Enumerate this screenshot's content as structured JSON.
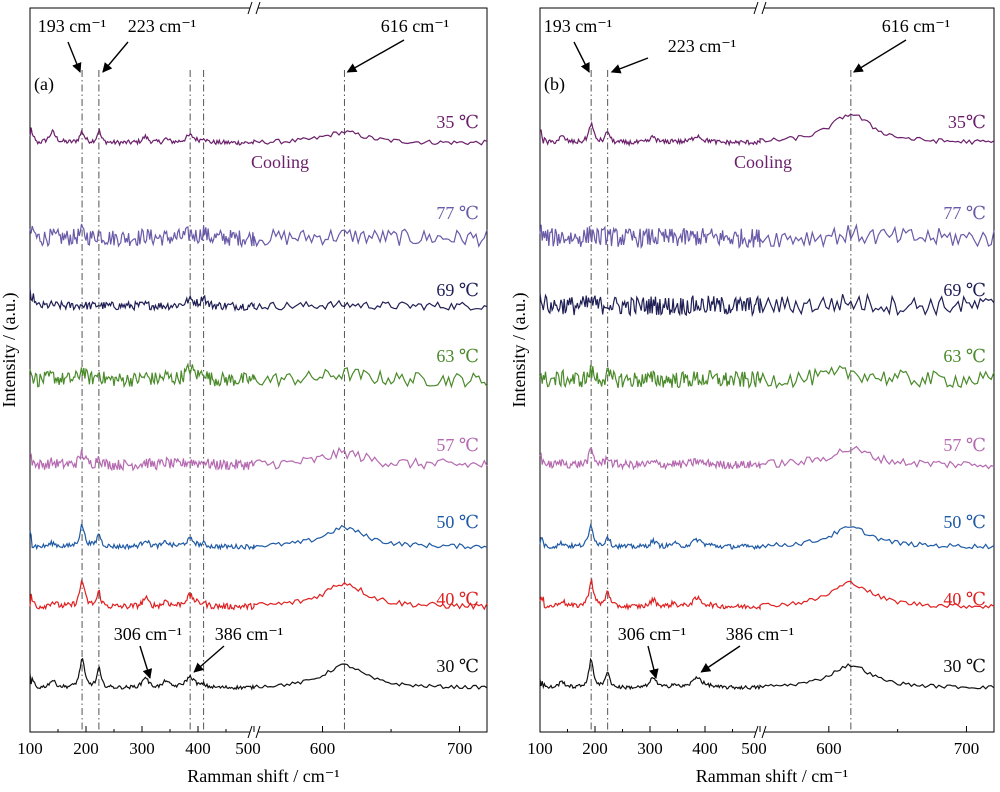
{
  "chart_data": [
    {
      "type": "line",
      "panel_label": "(a)",
      "xlabel": "Ramman shift / cm⁻¹",
      "ylabel": "Intensity / (a.u.)",
      "x_ticks": [
        "100",
        "200",
        "300",
        "400",
        "500",
        "600",
        "700"
      ],
      "axis_break": "between 500 and 550 cm⁻¹",
      "annotation_text": "Cooling",
      "annotation_color": "#6b1f6b",
      "peak_labels": [
        "193 cm⁻¹",
        "223 cm⁻¹",
        "616 cm⁻¹",
        "306 cm⁻¹",
        "386 cm⁻¹"
      ],
      "series": [
        {
          "name": "35 ℃",
          "color": "#6b1f6b",
          "noise": 0.2,
          "peak_amps": [
            0.9,
            0.9,
            1.0,
            0.5,
            0.6,
            0.3,
            0.4,
            0.9
          ]
        },
        {
          "name": "77 ℃",
          "color": "#6a5aa8",
          "noise": 0.7,
          "peak_amps": [
            0.1,
            0.5,
            0.4,
            0.2,
            0.3,
            0.0,
            0.6,
            0.2
          ]
        },
        {
          "name": "69 ℃",
          "color": "#1f1f55",
          "noise": 0.35,
          "peak_amps": [
            0.1,
            0.1,
            0.1,
            0.1,
            0.5,
            0.0,
            0.8,
            0.1
          ]
        },
        {
          "name": "63 ℃",
          "color": "#4a8a2a",
          "noise": 0.6,
          "peak_amps": [
            0.3,
            0.9,
            0.6,
            0.3,
            0.9,
            0.3,
            0.7,
            0.5
          ]
        },
        {
          "name": "57 ℃",
          "color": "#b569b0",
          "noise": 0.45,
          "peak_amps": [
            0.2,
            1.0,
            0.7,
            0.2,
            0.3,
            0.2,
            0.3,
            1.0
          ]
        },
        {
          "name": "50 ℃",
          "color": "#1f5aa5",
          "noise": 0.2,
          "peak_amps": [
            0.3,
            1.8,
            1.1,
            0.6,
            0.6,
            0.4,
            0.2,
            1.6
          ]
        },
        {
          "name": "40 ℃",
          "color": "#e02020",
          "noise": 0.25,
          "peak_amps": [
            0.4,
            2.2,
            1.2,
            0.7,
            0.9,
            0.5,
            0.3,
            2.0
          ]
        },
        {
          "name": "30 ℃",
          "color": "#111111",
          "noise": 0.15,
          "peak_amps": [
            0.6,
            2.4,
            1.6,
            0.9,
            0.9,
            0.6,
            0.2,
            1.9
          ]
        }
      ]
    },
    {
      "type": "line",
      "panel_label": "(b)",
      "xlabel": "Ramman shift / cm⁻¹",
      "ylabel": "Intensity / (a.u.)",
      "x_ticks": [
        "100",
        "200",
        "300",
        "400",
        "500",
        "600",
        "700"
      ],
      "axis_break": "between 500 and 550 cm⁻¹",
      "annotation_text": "Cooling",
      "annotation_color": "#6b1f6b",
      "peak_labels": [
        "193 cm⁻¹",
        "223 cm⁻¹",
        "616 cm⁻¹",
        "306 cm⁻¹",
        "386 cm⁻¹"
      ],
      "series": [
        {
          "name": "35℃",
          "color": "#6b1f6b",
          "noise": 0.2,
          "peak_amps": [
            0.5,
            1.6,
            1.0,
            0.5,
            0.6,
            0.2,
            0.1,
            2.4
          ]
        },
        {
          "name": "77 ℃",
          "color": "#6a5aa8",
          "noise": 0.8,
          "peak_amps": [
            0.1,
            0.4,
            0.3,
            0.1,
            0.1,
            0.0,
            0.1,
            0.3
          ]
        },
        {
          "name": "69 ℃",
          "color": "#1f1f55",
          "noise": 0.8,
          "peak_amps": [
            0.1,
            0.4,
            0.3,
            0.1,
            0.1,
            0.0,
            0.1,
            0.3
          ]
        },
        {
          "name": "63 ℃",
          "color": "#4a8a2a",
          "noise": 0.7,
          "peak_amps": [
            0.1,
            0.7,
            0.4,
            0.1,
            0.1,
            0.0,
            0.1,
            0.6
          ]
        },
        {
          "name": "57 ℃",
          "color": "#b569b0",
          "noise": 0.35,
          "peak_amps": [
            0.2,
            1.2,
            0.7,
            0.2,
            0.3,
            0.1,
            0.1,
            1.3
          ]
        },
        {
          "name": "50 ℃",
          "color": "#1f5aa5",
          "noise": 0.2,
          "peak_amps": [
            0.3,
            1.8,
            0.9,
            0.5,
            0.6,
            0.3,
            0.1,
            1.6
          ]
        },
        {
          "name": "40 ℃",
          "color": "#e02020",
          "noise": 0.2,
          "peak_amps": [
            0.5,
            2.2,
            1.4,
            0.6,
            0.7,
            0.3,
            0.1,
            2.0
          ]
        },
        {
          "name": "30 ℃",
          "color": "#111111",
          "noise": 0.15,
          "peak_amps": [
            0.5,
            2.3,
            1.4,
            0.9,
            0.9,
            0.3,
            0.1,
            1.9
          ]
        }
      ]
    }
  ]
}
